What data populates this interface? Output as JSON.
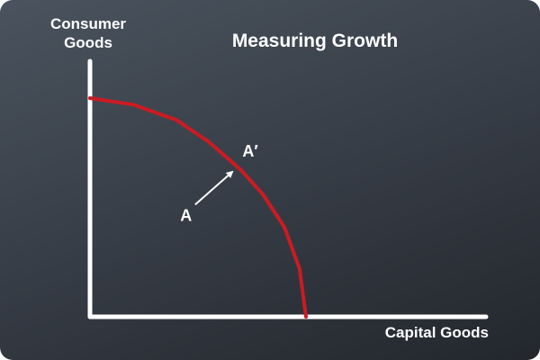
{
  "colors": {
    "curve": "#cc1b22",
    "axes": "#ffffff",
    "arrow": "#ffffff",
    "text": "#ffffff"
  },
  "chart_data": {
    "type": "line",
    "title": "Measuring Growth",
    "ylabel_lines": [
      "Consumer",
      "Goods"
    ],
    "xlabel": "Capital Goods",
    "series": [
      {
        "name": "",
        "shape": "concave production possibility frontier",
        "x": [
          0,
          20,
          40,
          55,
          70,
          80,
          90,
          97,
          100
        ],
        "y": [
          100,
          97,
          90,
          80,
          67,
          56,
          41,
          22,
          0
        ]
      }
    ],
    "points": [
      {
        "label": "A",
        "x": 47,
        "y": 48
      },
      {
        "label": "A′",
        "x": 70,
        "y": 72
      }
    ],
    "arrow": {
      "from": "A",
      "to": "A′"
    }
  }
}
